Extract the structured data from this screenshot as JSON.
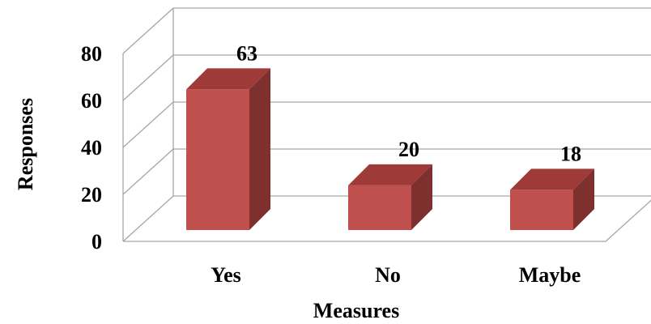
{
  "chart_data": {
    "type": "bar",
    "categories": [
      "Yes",
      "No",
      "Maybe"
    ],
    "values": [
      63,
      20,
      18
    ],
    "data_labels": [
      "63",
      "20",
      "18"
    ],
    "xlabel": "Measures",
    "ylabel": "Responses",
    "ylim": [
      0,
      80
    ],
    "yticks": [
      "0",
      "20",
      "40",
      "60",
      "80"
    ],
    "grid": true,
    "legend": "none",
    "style": "3d",
    "colors": {
      "bar_front": "#C0504D",
      "bar_top": "#9E3B38",
      "bar_side": "#7D302E",
      "grid": "#A6A6A6"
    }
  }
}
